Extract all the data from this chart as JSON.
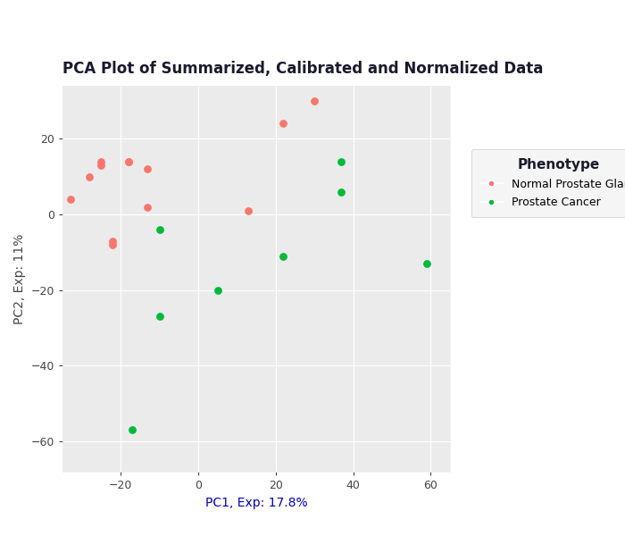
{
  "title": "PCA Plot of Summarized, Calibrated and Normalized Data",
  "xlabel": "PC1, Exp: 17.8%",
  "ylabel": "PC2, Exp: 11%",
  "normal_x": [
    -33,
    -28,
    -25,
    -25,
    -22,
    -22,
    -18,
    -18,
    -13,
    -13,
    13,
    22,
    30
  ],
  "normal_y": [
    4,
    10,
    13,
    14,
    -8,
    -7,
    14,
    14,
    12,
    2,
    1,
    24,
    30
  ],
  "cancer_x": [
    -17,
    -10,
    -10,
    5,
    22,
    37,
    37,
    59
  ],
  "cancer_y": [
    -57,
    -27,
    -4,
    -20,
    -11,
    6,
    14,
    -13
  ],
  "normal_color": "#F8766D",
  "cancer_color": "#00BA38",
  "background_color": "#EBEBEB",
  "grid_color": "#FFFFFF",
  "title_color": "#1A1A2E",
  "axis_label_color": "#0000BB",
  "tick_color": "#444444",
  "legend_title": "Phenotype",
  "legend_label_normal": "Normal Prostate Gland",
  "legend_label_cancer": "Prostate Cancer",
  "xlim": [
    -35,
    65
  ],
  "ylim": [
    -68,
    34
  ],
  "xticks": [
    -20,
    0,
    20,
    40,
    60
  ],
  "yticks": [
    -60,
    -40,
    -20,
    0,
    20
  ],
  "marker_size": 28,
  "title_fontsize": 12,
  "label_fontsize": 10,
  "tick_fontsize": 9,
  "legend_title_fontsize": 11,
  "legend_fontsize": 9
}
